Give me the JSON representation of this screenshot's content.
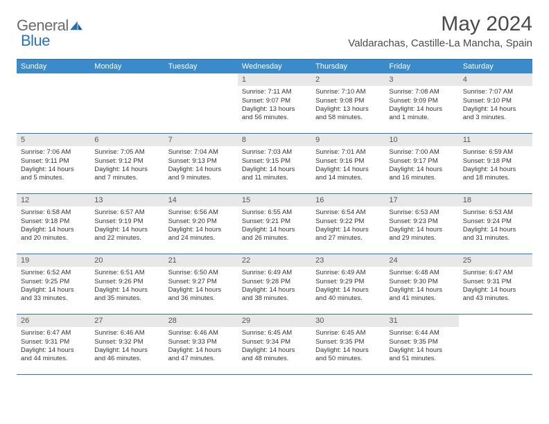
{
  "logo": {
    "textGray": "General",
    "textBlue": "Blue"
  },
  "header": {
    "monthTitle": "May 2024",
    "location": "Valdarachas, Castille-La Mancha, Spain"
  },
  "colors": {
    "headerBar": "#3b8bca",
    "accentLine": "#2a71b8",
    "dayNumBg": "#e8e8e8",
    "textDark": "#333333",
    "textGray": "#6a6a6a"
  },
  "weekdays": [
    "Sunday",
    "Monday",
    "Tuesday",
    "Wednesday",
    "Thursday",
    "Friday",
    "Saturday"
  ],
  "weeks": [
    [
      {
        "n": "",
        "empty": true
      },
      {
        "n": "",
        "empty": true
      },
      {
        "n": "",
        "empty": true
      },
      {
        "n": "1",
        "sr": "Sunrise: 7:11 AM",
        "ss": "Sunset: 9:07 PM",
        "dl": "Daylight: 13 hours and 56 minutes."
      },
      {
        "n": "2",
        "sr": "Sunrise: 7:10 AM",
        "ss": "Sunset: 9:08 PM",
        "dl": "Daylight: 13 hours and 58 minutes."
      },
      {
        "n": "3",
        "sr": "Sunrise: 7:08 AM",
        "ss": "Sunset: 9:09 PM",
        "dl": "Daylight: 14 hours and 1 minute."
      },
      {
        "n": "4",
        "sr": "Sunrise: 7:07 AM",
        "ss": "Sunset: 9:10 PM",
        "dl": "Daylight: 14 hours and 3 minutes."
      }
    ],
    [
      {
        "n": "5",
        "sr": "Sunrise: 7:06 AM",
        "ss": "Sunset: 9:11 PM",
        "dl": "Daylight: 14 hours and 5 minutes."
      },
      {
        "n": "6",
        "sr": "Sunrise: 7:05 AM",
        "ss": "Sunset: 9:12 PM",
        "dl": "Daylight: 14 hours and 7 minutes."
      },
      {
        "n": "7",
        "sr": "Sunrise: 7:04 AM",
        "ss": "Sunset: 9:13 PM",
        "dl": "Daylight: 14 hours and 9 minutes."
      },
      {
        "n": "8",
        "sr": "Sunrise: 7:03 AM",
        "ss": "Sunset: 9:15 PM",
        "dl": "Daylight: 14 hours and 11 minutes."
      },
      {
        "n": "9",
        "sr": "Sunrise: 7:01 AM",
        "ss": "Sunset: 9:16 PM",
        "dl": "Daylight: 14 hours and 14 minutes."
      },
      {
        "n": "10",
        "sr": "Sunrise: 7:00 AM",
        "ss": "Sunset: 9:17 PM",
        "dl": "Daylight: 14 hours and 16 minutes."
      },
      {
        "n": "11",
        "sr": "Sunrise: 6:59 AM",
        "ss": "Sunset: 9:18 PM",
        "dl": "Daylight: 14 hours and 18 minutes."
      }
    ],
    [
      {
        "n": "12",
        "sr": "Sunrise: 6:58 AM",
        "ss": "Sunset: 9:18 PM",
        "dl": "Daylight: 14 hours and 20 minutes."
      },
      {
        "n": "13",
        "sr": "Sunrise: 6:57 AM",
        "ss": "Sunset: 9:19 PM",
        "dl": "Daylight: 14 hours and 22 minutes."
      },
      {
        "n": "14",
        "sr": "Sunrise: 6:56 AM",
        "ss": "Sunset: 9:20 PM",
        "dl": "Daylight: 14 hours and 24 minutes."
      },
      {
        "n": "15",
        "sr": "Sunrise: 6:55 AM",
        "ss": "Sunset: 9:21 PM",
        "dl": "Daylight: 14 hours and 26 minutes."
      },
      {
        "n": "16",
        "sr": "Sunrise: 6:54 AM",
        "ss": "Sunset: 9:22 PM",
        "dl": "Daylight: 14 hours and 27 minutes."
      },
      {
        "n": "17",
        "sr": "Sunrise: 6:53 AM",
        "ss": "Sunset: 9:23 PM",
        "dl": "Daylight: 14 hours and 29 minutes."
      },
      {
        "n": "18",
        "sr": "Sunrise: 6:53 AM",
        "ss": "Sunset: 9:24 PM",
        "dl": "Daylight: 14 hours and 31 minutes."
      }
    ],
    [
      {
        "n": "19",
        "sr": "Sunrise: 6:52 AM",
        "ss": "Sunset: 9:25 PM",
        "dl": "Daylight: 14 hours and 33 minutes."
      },
      {
        "n": "20",
        "sr": "Sunrise: 6:51 AM",
        "ss": "Sunset: 9:26 PM",
        "dl": "Daylight: 14 hours and 35 minutes."
      },
      {
        "n": "21",
        "sr": "Sunrise: 6:50 AM",
        "ss": "Sunset: 9:27 PM",
        "dl": "Daylight: 14 hours and 36 minutes."
      },
      {
        "n": "22",
        "sr": "Sunrise: 6:49 AM",
        "ss": "Sunset: 9:28 PM",
        "dl": "Daylight: 14 hours and 38 minutes."
      },
      {
        "n": "23",
        "sr": "Sunrise: 6:49 AM",
        "ss": "Sunset: 9:29 PM",
        "dl": "Daylight: 14 hours and 40 minutes."
      },
      {
        "n": "24",
        "sr": "Sunrise: 6:48 AM",
        "ss": "Sunset: 9:30 PM",
        "dl": "Daylight: 14 hours and 41 minutes."
      },
      {
        "n": "25",
        "sr": "Sunrise: 6:47 AM",
        "ss": "Sunset: 9:31 PM",
        "dl": "Daylight: 14 hours and 43 minutes."
      }
    ],
    [
      {
        "n": "26",
        "sr": "Sunrise: 6:47 AM",
        "ss": "Sunset: 9:31 PM",
        "dl": "Daylight: 14 hours and 44 minutes."
      },
      {
        "n": "27",
        "sr": "Sunrise: 6:46 AM",
        "ss": "Sunset: 9:32 PM",
        "dl": "Daylight: 14 hours and 46 minutes."
      },
      {
        "n": "28",
        "sr": "Sunrise: 6:46 AM",
        "ss": "Sunset: 9:33 PM",
        "dl": "Daylight: 14 hours and 47 minutes."
      },
      {
        "n": "29",
        "sr": "Sunrise: 6:45 AM",
        "ss": "Sunset: 9:34 PM",
        "dl": "Daylight: 14 hours and 48 minutes."
      },
      {
        "n": "30",
        "sr": "Sunrise: 6:45 AM",
        "ss": "Sunset: 9:35 PM",
        "dl": "Daylight: 14 hours and 50 minutes."
      },
      {
        "n": "31",
        "sr": "Sunrise: 6:44 AM",
        "ss": "Sunset: 9:35 PM",
        "dl": "Daylight: 14 hours and 51 minutes."
      },
      {
        "n": "",
        "empty": true
      }
    ]
  ]
}
